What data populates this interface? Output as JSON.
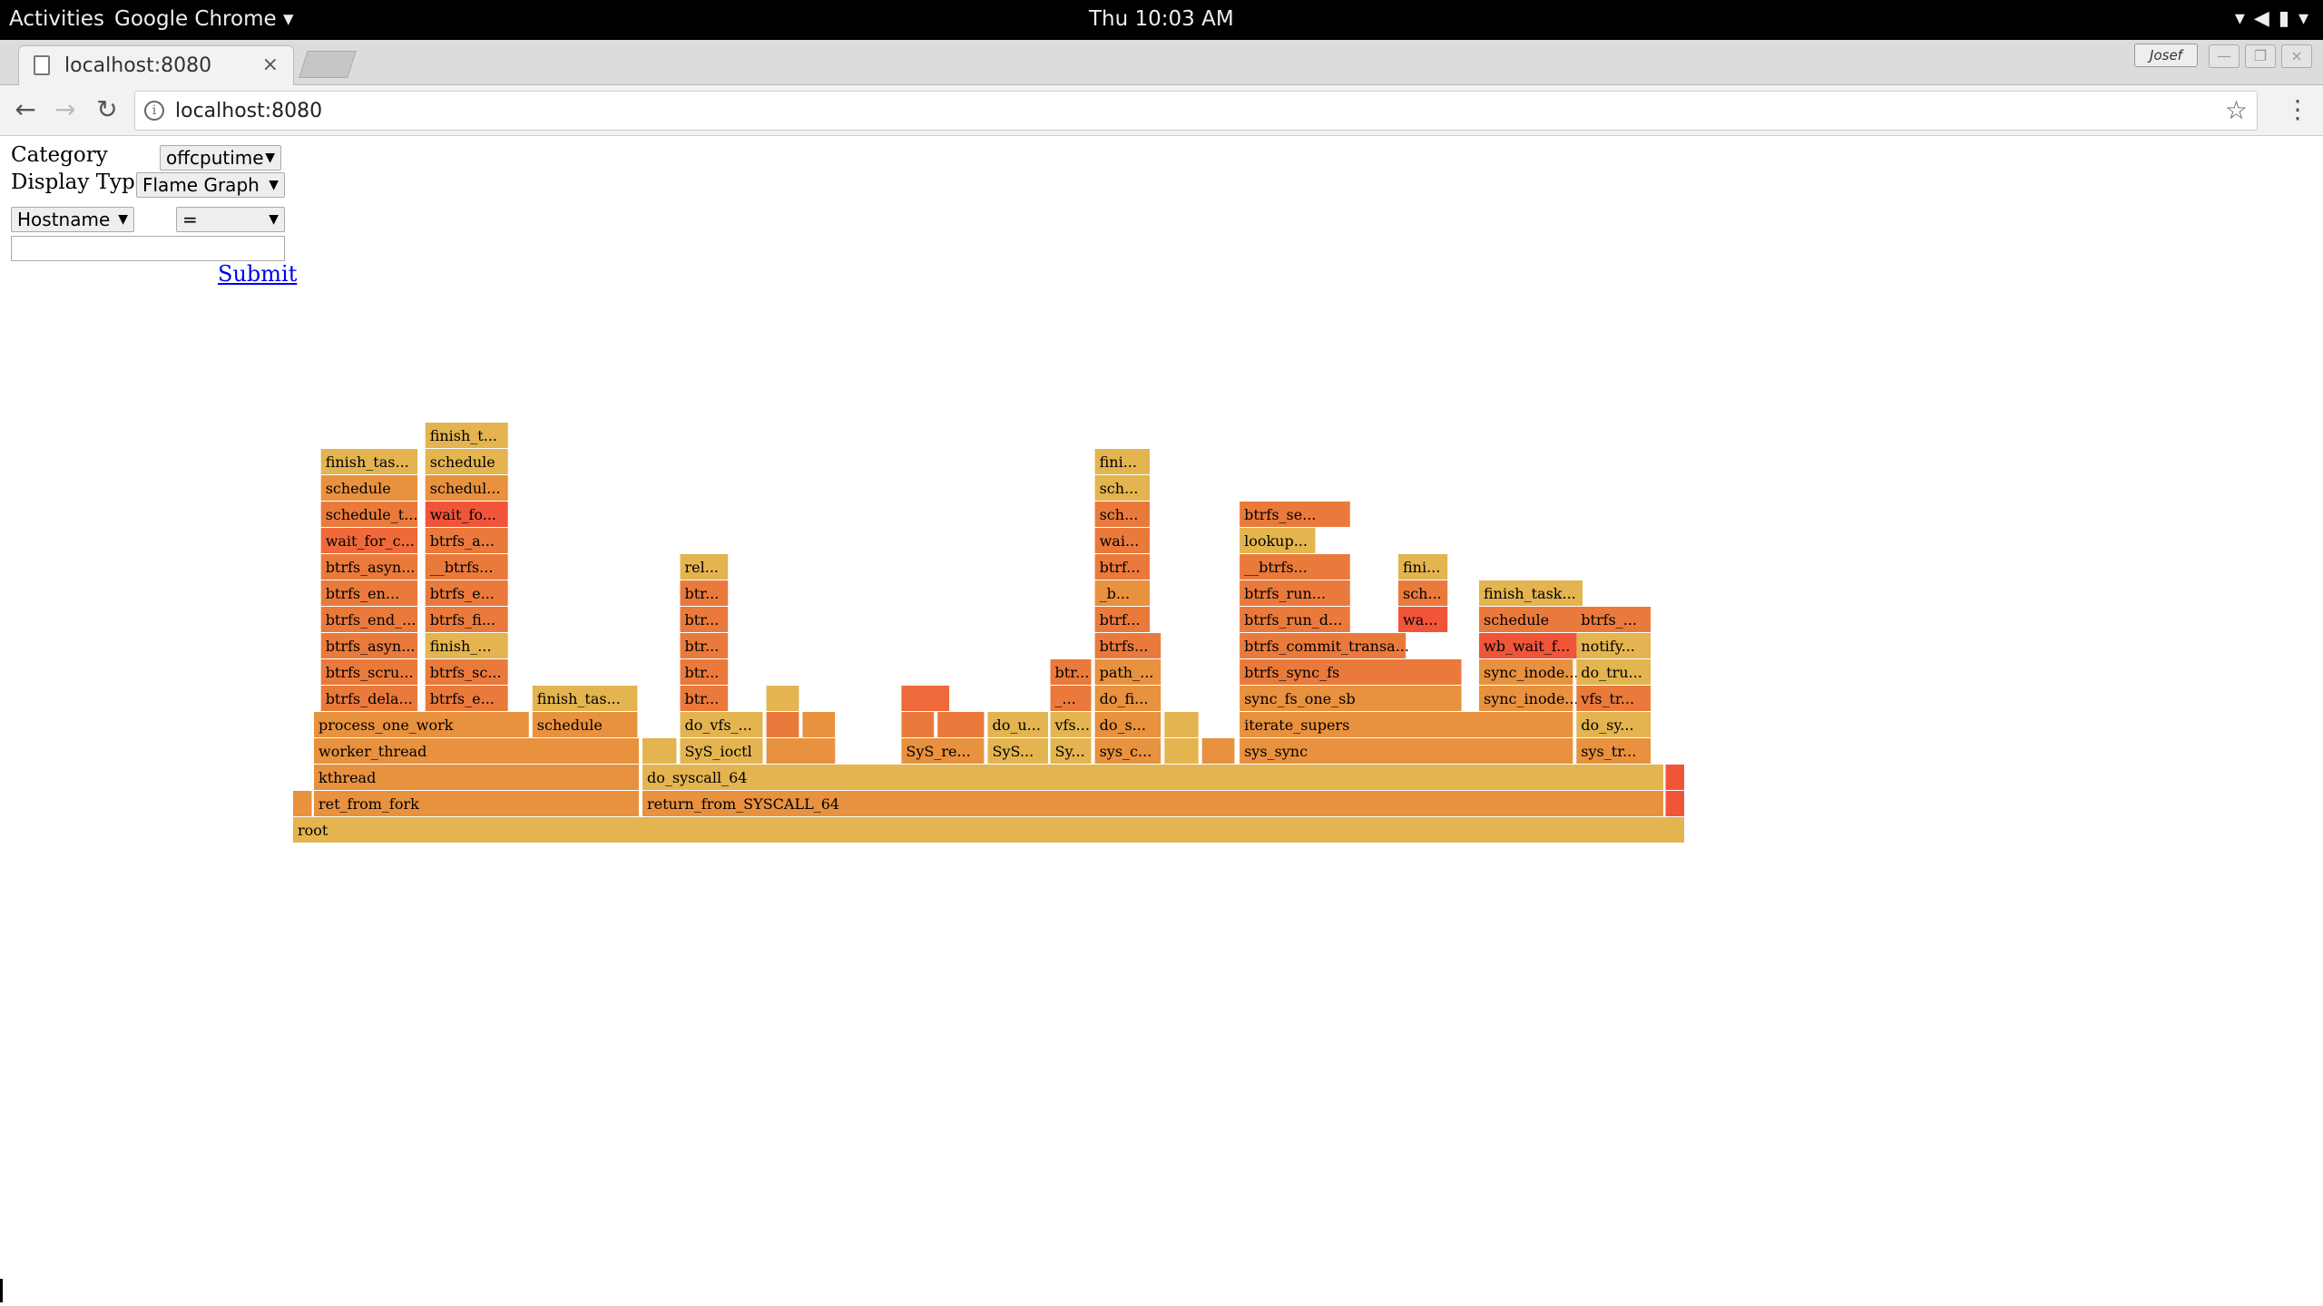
{
  "topbar": {
    "activities": "Activities",
    "app": "Google Chrome",
    "clock": "Thu 10:03 AM"
  },
  "tab": {
    "title": "localhost:8080",
    "close_icon": "close-icon"
  },
  "user": {
    "name": "Josef"
  },
  "omnibar": {
    "url": "localhost:8080"
  },
  "form": {
    "category_label": "Category",
    "category_value": "offcputime",
    "display_label": "Display Type",
    "display_value": "Flame Graph",
    "field_value": "Hostname",
    "operator_value": "=",
    "text_value": "",
    "submit_label": "Submit"
  },
  "flame": {
    "colors": [
      "#e3b44f",
      "#e8913e",
      "#ea7a3c",
      "#ef6a3a",
      "#f0553a",
      "#ec7b40"
    ],
    "frames": [
      {
        "x": 0.0,
        "w": 1.0,
        "d": 0,
        "l": "root",
        "c": 0
      },
      {
        "x": 0.0,
        "w": 0.014,
        "d": 1,
        "l": "",
        "c": 1
      },
      {
        "x": 0.015,
        "w": 0.234,
        "d": 1,
        "l": "ret_from_fork",
        "c": 1
      },
      {
        "x": 0.251,
        "w": 0.734,
        "d": 1,
        "l": "return_from_SYSCALL_64",
        "c": 1
      },
      {
        "x": 0.986,
        "w": 0.014,
        "d": 1,
        "l": "",
        "c": 4
      },
      {
        "x": 0.015,
        "w": 0.234,
        "d": 2,
        "l": "kthread",
        "c": 1
      },
      {
        "x": 0.251,
        "w": 0.734,
        "d": 2,
        "l": "do_syscall_64",
        "c": 0
      },
      {
        "x": 0.986,
        "w": 0.014,
        "d": 2,
        "l": "",
        "c": 4
      },
      {
        "x": 0.015,
        "w": 0.234,
        "d": 3,
        "l": "worker_thread",
        "c": 1
      },
      {
        "x": 0.251,
        "w": 0.025,
        "d": 3,
        "l": "",
        "c": 0
      },
      {
        "x": 0.278,
        "w": 0.06,
        "d": 3,
        "l": "SyS_ioctl",
        "c": 0
      },
      {
        "x": 0.34,
        "w": 0.05,
        "d": 3,
        "l": "",
        "c": 1
      },
      {
        "x": 0.437,
        "w": 0.06,
        "d": 3,
        "l": "SyS_re...",
        "c": 1
      },
      {
        "x": 0.499,
        "w": 0.044,
        "d": 3,
        "l": "SyS...",
        "c": 0
      },
      {
        "x": 0.544,
        "w": 0.03,
        "d": 3,
        "l": "Sy...",
        "c": 0
      },
      {
        "x": 0.576,
        "w": 0.048,
        "d": 3,
        "l": "sys_c...",
        "c": 1
      },
      {
        "x": 0.626,
        "w": 0.025,
        "d": 3,
        "l": "",
        "c": 0
      },
      {
        "x": 0.653,
        "w": 0.024,
        "d": 3,
        "l": "",
        "c": 1
      },
      {
        "x": 0.68,
        "w": 0.24,
        "d": 3,
        "l": "sys_sync",
        "c": 1
      },
      {
        "x": 0.922,
        "w": 0.054,
        "d": 3,
        "l": "sys_tr...",
        "c": 1
      },
      {
        "x": 0.015,
        "w": 0.155,
        "d": 4,
        "l": "process_one_work",
        "c": 1
      },
      {
        "x": 0.172,
        "w": 0.076,
        "d": 4,
        "l": "schedule",
        "c": 1
      },
      {
        "x": 0.278,
        "w": 0.06,
        "d": 4,
        "l": "do_vfs_...",
        "c": 0
      },
      {
        "x": 0.34,
        "w": 0.024,
        "d": 4,
        "l": "",
        "c": 2
      },
      {
        "x": 0.366,
        "w": 0.024,
        "d": 4,
        "l": "",
        "c": 1
      },
      {
        "x": 0.437,
        "w": 0.024,
        "d": 4,
        "l": "",
        "c": 2
      },
      {
        "x": 0.463,
        "w": 0.034,
        "d": 4,
        "l": "",
        "c": 2
      },
      {
        "x": 0.499,
        "w": 0.044,
        "d": 4,
        "l": "do_u...",
        "c": 0
      },
      {
        "x": 0.544,
        "w": 0.03,
        "d": 4,
        "l": "vfs...",
        "c": 0
      },
      {
        "x": 0.576,
        "w": 0.048,
        "d": 4,
        "l": "do_s...",
        "c": 1
      },
      {
        "x": 0.626,
        "w": 0.025,
        "d": 4,
        "l": "",
        "c": 0
      },
      {
        "x": 0.68,
        "w": 0.24,
        "d": 4,
        "l": "iterate_supers",
        "c": 1
      },
      {
        "x": 0.922,
        "w": 0.054,
        "d": 4,
        "l": "do_sy...",
        "c": 0
      },
      {
        "x": 0.02,
        "w": 0.07,
        "d": 5,
        "l": "btrfs_dela...",
        "c": 2
      },
      {
        "x": 0.095,
        "w": 0.06,
        "d": 5,
        "l": "btrfs_e...",
        "c": 2
      },
      {
        "x": 0.172,
        "w": 0.076,
        "d": 5,
        "l": "finish_tas...",
        "c": 0
      },
      {
        "x": 0.278,
        "w": 0.035,
        "d": 5,
        "l": "btr...",
        "c": 2
      },
      {
        "x": 0.34,
        "w": 0.024,
        "d": 5,
        "l": "",
        "c": 0
      },
      {
        "x": 0.437,
        "w": 0.035,
        "d": 5,
        "l": "",
        "c": 3
      },
      {
        "x": 0.544,
        "w": 0.03,
        "d": 5,
        "l": "_...",
        "c": 2
      },
      {
        "x": 0.576,
        "w": 0.048,
        "d": 5,
        "l": "do_fi...",
        "c": 1
      },
      {
        "x": 0.68,
        "w": 0.16,
        "d": 5,
        "l": "sync_fs_one_sb",
        "c": 1
      },
      {
        "x": 0.852,
        "w": 0.068,
        "d": 5,
        "l": "sync_inode...",
        "c": 1
      },
      {
        "x": 0.922,
        "w": 0.054,
        "d": 5,
        "l": "vfs_tr...",
        "c": 2
      },
      {
        "x": 0.02,
        "w": 0.07,
        "d": 6,
        "l": "btrfs_scru...",
        "c": 2
      },
      {
        "x": 0.095,
        "w": 0.06,
        "d": 6,
        "l": "btrfs_sc...",
        "c": 2
      },
      {
        "x": 0.278,
        "w": 0.035,
        "d": 6,
        "l": "btr...",
        "c": 2
      },
      {
        "x": 0.544,
        "w": 0.03,
        "d": 6,
        "l": "btr...",
        "c": 2
      },
      {
        "x": 0.576,
        "w": 0.048,
        "d": 6,
        "l": "path_...",
        "c": 1
      },
      {
        "x": 0.68,
        "w": 0.16,
        "d": 6,
        "l": "btrfs_sync_fs",
        "c": 2
      },
      {
        "x": 0.852,
        "w": 0.068,
        "d": 6,
        "l": "sync_inode...",
        "c": 1
      },
      {
        "x": 0.922,
        "w": 0.054,
        "d": 6,
        "l": "do_tru...",
        "c": 0
      },
      {
        "x": 0.02,
        "w": 0.07,
        "d": 7,
        "l": "btrfs_asyn...",
        "c": 2
      },
      {
        "x": 0.095,
        "w": 0.06,
        "d": 7,
        "l": "finish_...",
        "c": 0
      },
      {
        "x": 0.278,
        "w": 0.035,
        "d": 7,
        "l": "btr...",
        "c": 2
      },
      {
        "x": 0.576,
        "w": 0.048,
        "d": 7,
        "l": "btrfs...",
        "c": 2
      },
      {
        "x": 0.68,
        "w": 0.12,
        "d": 7,
        "l": "btrfs_commit_transa...",
        "c": 2
      },
      {
        "x": 0.852,
        "w": 0.075,
        "d": 7,
        "l": "wb_wait_f...",
        "c": 4
      },
      {
        "x": 0.922,
        "w": 0.054,
        "d": 7,
        "l": "notify...",
        "c": 0
      },
      {
        "x": 0.02,
        "w": 0.07,
        "d": 8,
        "l": "btrfs_end_...",
        "c": 2
      },
      {
        "x": 0.095,
        "w": 0.06,
        "d": 8,
        "l": "btrfs_fi...",
        "c": 2
      },
      {
        "x": 0.278,
        "w": 0.035,
        "d": 8,
        "l": "btr...",
        "c": 2
      },
      {
        "x": 0.576,
        "w": 0.04,
        "d": 8,
        "l": "btrf...",
        "c": 2
      },
      {
        "x": 0.68,
        "w": 0.08,
        "d": 8,
        "l": "btrfs_run_d...",
        "c": 2
      },
      {
        "x": 0.794,
        "w": 0.036,
        "d": 8,
        "l": "wa...",
        "c": 4
      },
      {
        "x": 0.852,
        "w": 0.075,
        "d": 8,
        "l": "schedule",
        "c": 2
      },
      {
        "x": 0.922,
        "w": 0.054,
        "d": 8,
        "l": "btrfs_...",
        "c": 2
      },
      {
        "x": 0.02,
        "w": 0.07,
        "d": 9,
        "l": "btrfs_en...",
        "c": 2
      },
      {
        "x": 0.095,
        "w": 0.06,
        "d": 9,
        "l": "btrfs_e...",
        "c": 2
      },
      {
        "x": 0.278,
        "w": 0.035,
        "d": 9,
        "l": "btr...",
        "c": 2
      },
      {
        "x": 0.576,
        "w": 0.04,
        "d": 9,
        "l": "_b...",
        "c": 1
      },
      {
        "x": 0.68,
        "w": 0.08,
        "d": 9,
        "l": "btrfs_run...",
        "c": 2
      },
      {
        "x": 0.794,
        "w": 0.036,
        "d": 9,
        "l": "sch...",
        "c": 2
      },
      {
        "x": 0.852,
        "w": 0.075,
        "d": 9,
        "l": "finish_task...",
        "c": 0
      },
      {
        "x": 0.02,
        "w": 0.07,
        "d": 10,
        "l": "btrfs_asyn...",
        "c": 2
      },
      {
        "x": 0.095,
        "w": 0.06,
        "d": 10,
        "l": "__btrfs...",
        "c": 2
      },
      {
        "x": 0.278,
        "w": 0.035,
        "d": 10,
        "l": "rel...",
        "c": 0
      },
      {
        "x": 0.576,
        "w": 0.04,
        "d": 10,
        "l": "btrf...",
        "c": 2
      },
      {
        "x": 0.68,
        "w": 0.08,
        "d": 10,
        "l": "__btrfs...",
        "c": 2
      },
      {
        "x": 0.794,
        "w": 0.036,
        "d": 10,
        "l": "fini...",
        "c": 0
      },
      {
        "x": 0.02,
        "w": 0.07,
        "d": 11,
        "l": "wait_for_c...",
        "c": 3
      },
      {
        "x": 0.095,
        "w": 0.06,
        "d": 11,
        "l": "btrfs_a...",
        "c": 2
      },
      {
        "x": 0.576,
        "w": 0.04,
        "d": 11,
        "l": "wai...",
        "c": 2
      },
      {
        "x": 0.68,
        "w": 0.055,
        "d": 11,
        "l": "lookup...",
        "c": 0
      },
      {
        "x": 0.02,
        "w": 0.07,
        "d": 12,
        "l": "schedule_t...",
        "c": 2
      },
      {
        "x": 0.095,
        "w": 0.06,
        "d": 12,
        "l": "wait_fo...",
        "c": 4
      },
      {
        "x": 0.576,
        "w": 0.04,
        "d": 12,
        "l": "sch...",
        "c": 2
      },
      {
        "x": 0.68,
        "w": 0.08,
        "d": 12,
        "l": "btrfs_se...",
        "c": 2
      },
      {
        "x": 0.02,
        "w": 0.07,
        "d": 13,
        "l": "schedule",
        "c": 1
      },
      {
        "x": 0.095,
        "w": 0.06,
        "d": 13,
        "l": "schedul...",
        "c": 1
      },
      {
        "x": 0.576,
        "w": 0.04,
        "d": 13,
        "l": "sch...",
        "c": 0
      },
      {
        "x": 0.02,
        "w": 0.07,
        "d": 14,
        "l": "finish_tas...",
        "c": 0
      },
      {
        "x": 0.095,
        "w": 0.06,
        "d": 14,
        "l": "schedule",
        "c": 0
      },
      {
        "x": 0.576,
        "w": 0.04,
        "d": 14,
        "l": "fini...",
        "c": 0
      },
      {
        "x": 0.095,
        "w": 0.06,
        "d": 15,
        "l": "finish_t...",
        "c": 0
      }
    ]
  }
}
